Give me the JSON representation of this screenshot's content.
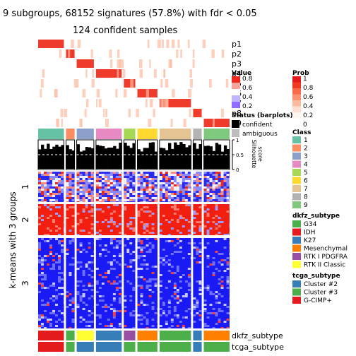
{
  "chart_data": {
    "type": "heatmap",
    "title": "9 subgroups, 68152 signatures (57.8%) with fdr < 0.05",
    "subtitle": "124 confident samples",
    "ylabel": "k-means with 3 groups",
    "row_groups": [
      "1",
      "2",
      "3"
    ],
    "prob_tracks": [
      "p1",
      "p2",
      "p3",
      "p4",
      "p5",
      "p6",
      "p7",
      "p8",
      "p9"
    ],
    "class_sizes": [
      9,
      3,
      6,
      9,
      4,
      7,
      11,
      3,
      9
    ],
    "colors": {
      "classes": [
        "#66C2A5",
        "#FC8D62",
        "#8DA0CB",
        "#E78AC3",
        "#A6D854",
        "#FFD92F",
        "#E5C494",
        "#B3B3B3",
        "#7FC97F"
      ],
      "dkfz": {
        "G34": "#4DAF4A",
        "IDH": "#E41A1C",
        "K27": "#377EB8",
        "Mesenchymal": "#FF7F00",
        "RTK I PDGFRA": "#984EA3",
        "RTK II Classic": "#FFFF33"
      },
      "tcga": {
        "Cluster #2": "#377EB8",
        "Cluster #3": "#4DAF4A",
        "G-CIMP+": "#E41A1C"
      }
    },
    "value_legend": {
      "title": "Value",
      "ticks": [
        "0.8",
        "0.6",
        "0.4",
        "0.2"
      ]
    },
    "prob_legend": {
      "title": "Prob",
      "ticks": [
        "1",
        "0.8",
        "0.6",
        "0.4",
        "0.2",
        "0"
      ]
    },
    "status_legend": {
      "title": "Status (barplots)",
      "items": [
        "confident",
        "ambiguous"
      ]
    },
    "class_legend": {
      "title": "Class",
      "items": [
        "1",
        "2",
        "3",
        "4",
        "5",
        "6",
        "7",
        "8",
        "9"
      ]
    },
    "dkfz_legend": {
      "title": "dkfz_subtype",
      "items": [
        "G34",
        "IDH",
        "K27",
        "Mesenchymal",
        "RTK I PDGFRA",
        "RTK II Classic"
      ]
    },
    "tcga_legend": {
      "title": "tcga_subtype",
      "items": [
        "Cluster #2",
        "Cluster #3",
        "G-CIMP+"
      ]
    },
    "silhouette": {
      "label": "Silhouette score",
      "ticks": [
        "1",
        "0.5",
        "0"
      ],
      "line1": "Silhouette",
      "line2": "score"
    },
    "annotation_labels": [
      "dkfz_subtype",
      "tcga_subtype"
    ]
  }
}
